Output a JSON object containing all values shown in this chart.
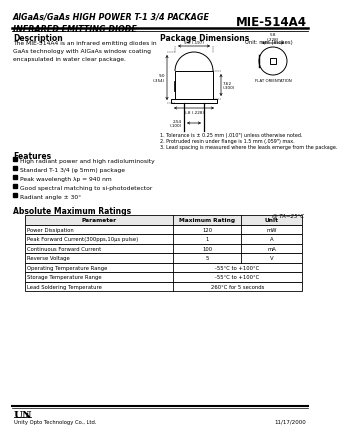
{
  "title_left": "AlGaAs/GaAs HIGH POWER T-1 3/4 PACKAGE\nINFRARED EMITTING DIODE",
  "title_right": "MIE-514A4",
  "bg_color": "#ffffff",
  "section_description_title": "Description",
  "section_description_text": "The MIE-514A4 is an infrared emitting diodes in\nGaAs technology with AlGaAs window coating\nencapsulated in water clear package.",
  "section_pkg_title": "Package Dimensions",
  "section_features_title": "Features",
  "features": [
    "High radiant power and high radioluminosity",
    "Standard T-1 3/4 (φ 5mm) package",
    "Peak wavelength λp = 940 nm",
    "Good spectral matching to si-photodetector",
    "Radiant angle ± 30°"
  ],
  "section_ratings_title": "Absolute Maximum Ratings",
  "ratings_note": "@ TA=25°C",
  "ratings_headers": [
    "Parameter",
    "Maximum Rating",
    "Unit"
  ],
  "ratings_rows": [
    [
      "Power Dissipation",
      "120",
      "mW"
    ],
    [
      "Peak Forward Current(300pps,10μs pulse)",
      "1",
      "A"
    ],
    [
      "Continuous Forward Current",
      "100",
      "mA"
    ],
    [
      "Reverse Voltage",
      "5",
      "V"
    ],
    [
      "Operating Temperature Range",
      "-55°C to +100°C",
      ""
    ],
    [
      "Storage Temperature Range",
      "-55°C to +100°C",
      ""
    ],
    [
      "Lead Soldering Temperature",
      "260°C for 5 seconds",
      ""
    ]
  ],
  "notes": [
    "1. Tolerance is ± 0.25 mm (.010\") unless otherwise noted.",
    "2. Protruded resin under flange is 1.5 mm (.059\") max.",
    "3. Lead spacing is measured where the leads emerge from the package."
  ],
  "footer_logo_main": "UN",
  "footer_logo_i": "i",
  "footer_company": "Unity Opto Technology Co., Ltd.",
  "footer_date": "11/17/2000",
  "unit_note": "Unit: mm (inches)"
}
